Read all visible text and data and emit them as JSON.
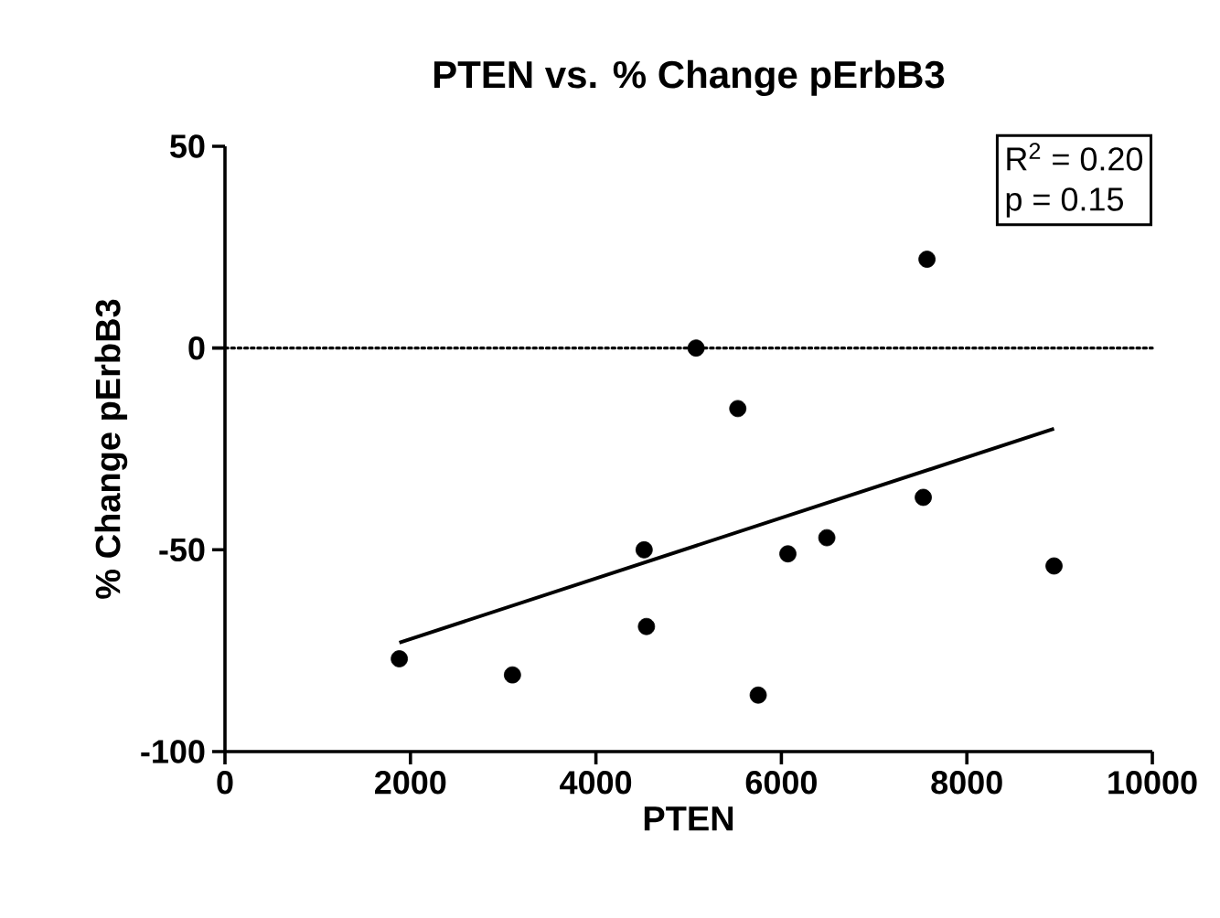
{
  "chart_data": {
    "type": "scatter",
    "title": "PTEN vs. % Change pErbB3",
    "xlabel": "PTEN",
    "ylabel": "% Change pErbB3",
    "xlim": [
      0,
      10000
    ],
    "xticks": [
      0,
      2000,
      4000,
      6000,
      8000,
      10000
    ],
    "ylim": [
      -100,
      50
    ],
    "yticks": [
      -100,
      -50,
      0,
      50
    ],
    "grid": false,
    "series": [
      {
        "marker": "circle",
        "color": "#000000",
        "x": [
          1880,
          3100,
          4520,
          4545,
          5080,
          5530,
          5750,
          6070,
          6490,
          7530,
          7570,
          8940
        ],
        "values": [
          -77,
          -81,
          -50,
          -69,
          0,
          -15,
          -86,
          -51,
          -47,
          -37,
          22,
          -54
        ]
      },
      {
        "type": "line",
        "color": "#000000",
        "line_style": "solid",
        "x": [
          1880,
          8940
        ],
        "values": [
          -73,
          -20
        ]
      }
    ],
    "ref_lines": [
      {
        "axis": "y",
        "value": 0,
        "line_style": "dotted",
        "color": "#000000"
      }
    ],
    "annotations": [
      "R$^{2}$ = 0.20",
      "p = 0.15"
    ]
  }
}
